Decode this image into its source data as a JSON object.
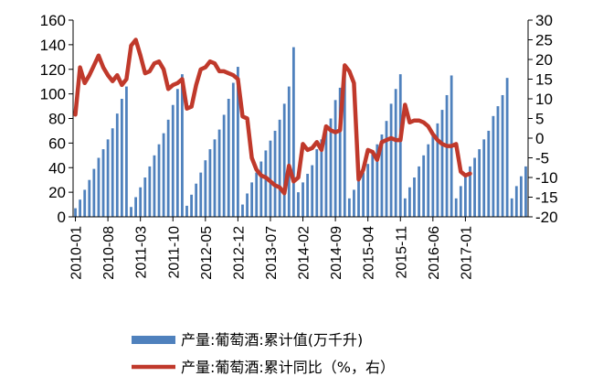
{
  "chart_data": {
    "type": "bar+line",
    "title": "",
    "left_axis": {
      "ylim": [
        0,
        160
      ],
      "ticks": [
        0,
        20,
        40,
        60,
        80,
        100,
        120,
        140,
        160
      ]
    },
    "right_axis": {
      "ylim": [
        -20,
        30
      ],
      "ticks": [
        -20,
        -15,
        -10,
        -5,
        0,
        5,
        10,
        15,
        20,
        25,
        30
      ]
    },
    "x_tick_labels": [
      "2010-01",
      "2010-08",
      "2011-03",
      "2011-10",
      "2012-05",
      "2012-12",
      "2013-07",
      "2014-02",
      "2014-09",
      "2015-04",
      "2015-11",
      "2016-06",
      "2017-01"
    ],
    "grid": false,
    "legend_position": "bottom",
    "series": [
      {
        "name": "产量:葡萄酒:累计值(万千升)",
        "type": "bar",
        "axis": "left",
        "color": "#4F81BD",
        "values": [
          7,
          14,
          22,
          30,
          39,
          48,
          55,
          63,
          72,
          84,
          96,
          106,
          8,
          16,
          24,
          32,
          41,
          50,
          59,
          68,
          79,
          91,
          104,
          116,
          9,
          18,
          27,
          36,
          46,
          55,
          63,
          71,
          83,
          96,
          109,
          122,
          10,
          19,
          28,
          36,
          45,
          54,
          62,
          70,
          79,
          92,
          106,
          138,
          20,
          28,
          35,
          42,
          55,
          63,
          71,
          80,
          95,
          105,
          118,
          15,
          22,
          29,
          36,
          43,
          51,
          59,
          67,
          78,
          92,
          104,
          116,
          15,
          24,
          32,
          41,
          50,
          59,
          67,
          76,
          87,
          99,
          115,
          15,
          25,
          33,
          41,
          48,
          55,
          63,
          70,
          82,
          90,
          99,
          113,
          15,
          25,
          33,
          41
        ]
      },
      {
        "name": "产量:葡萄酒:累计同比（%，右）",
        "type": "line",
        "axis": "right",
        "color": "#C0392B",
        "values": [
          6,
          18,
          14,
          16,
          18.5,
          21,
          18,
          16,
          14.5,
          16,
          13.5,
          15,
          23.5,
          25,
          21,
          16.5,
          17,
          19,
          19.5,
          17.5,
          12.5,
          13.5,
          14,
          15,
          7.5,
          8,
          13.5,
          17.5,
          18,
          19.5,
          19,
          17,
          17,
          16.5,
          16,
          15,
          5.5,
          5,
          -5,
          -8,
          -9.5,
          -10,
          -11,
          -12,
          -12.5,
          -14,
          -7,
          -11,
          -10,
          -1.5,
          -3,
          -2.5,
          -1,
          -3,
          3,
          2,
          1.5,
          2,
          18.5,
          17,
          14,
          -10.5,
          -8,
          -3,
          -3.5,
          -5.5,
          -1,
          -0.5,
          0,
          -0.5,
          -0.5,
          8.5,
          4,
          4.5,
          4.5,
          4,
          3,
          1,
          -0.5,
          -1.5,
          -2,
          -2,
          -1.5,
          -8.5,
          -9.5,
          -9
        ]
      }
    ]
  }
}
